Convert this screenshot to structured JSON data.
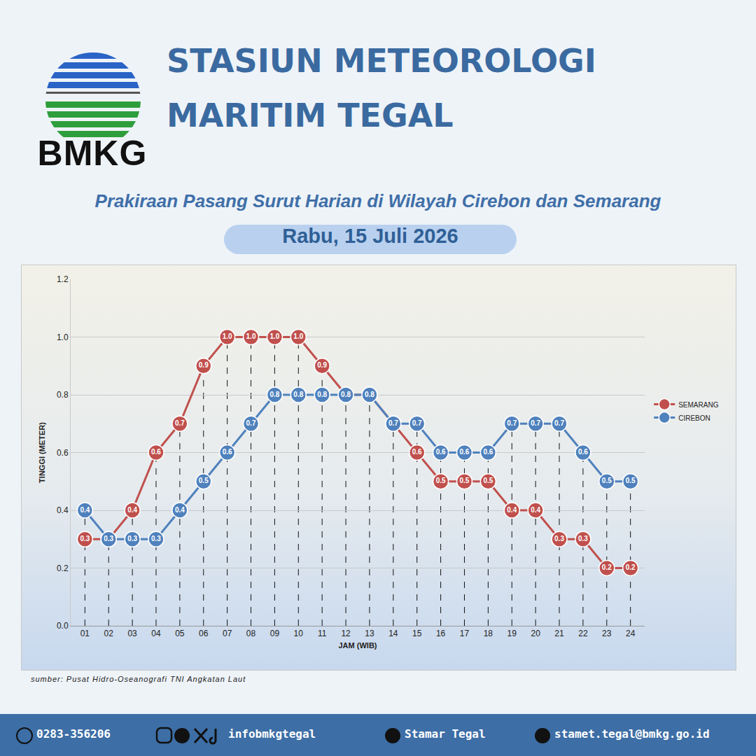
{
  "page": {
    "header": [
      "STASIUN METEOROLOGI",
      "MARITIM TEGAL"
    ],
    "logo_text": "BMKG",
    "source": "sumber: Pusat Hidro-Oseanografi TNI Angkatan Laut",
    "footer": {
      "phone": "0283-356206",
      "social": "infobmkgtegal",
      "youtube": "Stamar Tegal",
      "email": "stamet.tegal@bmkg.go.id"
    }
  },
  "chart_data": {
    "type": "line",
    "title": "Prakiraan Pasang Surut Harian di Wilayah Cirebon dan Semarang",
    "subtitle": "Rabu, 15 Juli 2026",
    "x_label": "JAM (WIB)",
    "y_label": "TINGGI (METER)",
    "categories": [
      "01",
      "02",
      "03",
      "04",
      "05",
      "06",
      "07",
      "08",
      "09",
      "10",
      "11",
      "12",
      "13",
      "14",
      "15",
      "16",
      "17",
      "18",
      "19",
      "20",
      "21",
      "22",
      "23",
      "24"
    ],
    "series": [
      {
        "name": "SEMARANG",
        "color": "#c0504d",
        "values": [
          0.3,
          0.3,
          0.4,
          0.6,
          0.7,
          0.9,
          1.0,
          1.0,
          1.0,
          1.0,
          0.9,
          0.8,
          0.8,
          0.7,
          0.6,
          0.5,
          0.5,
          0.5,
          0.4,
          0.4,
          0.3,
          0.3,
          0.2,
          0.2
        ],
        "value_labels": [
          "0.3",
          "0.3",
          "0.4",
          "0.6",
          "0.7",
          "0.9",
          "1.0",
          "1.0",
          "1.0",
          "1.0",
          "0.9",
          "0.8",
          "0.8",
          "0.7",
          "0.6",
          "0.5",
          "0.5",
          "0.5",
          "0.4",
          "0.4",
          "0.3",
          "0.3",
          "0.2",
          "0.2"
        ]
      },
      {
        "name": "CIREBON",
        "color": "#4f81bd",
        "values": [
          0.4,
          0.3,
          0.3,
          0.3,
          0.4,
          0.5,
          0.6,
          0.7,
          0.8,
          0.8,
          0.8,
          0.8,
          0.8,
          0.7,
          0.7,
          0.6,
          0.6,
          0.6,
          0.7,
          0.7,
          0.7,
          0.6,
          0.5,
          0.5
        ],
        "value_labels": [
          "0.4",
          "0.3",
          "0.3",
          "0.3",
          "0.4",
          "0.5",
          "0.6",
          "0.7",
          "0.8",
          "0.8",
          "0.8",
          "0.8",
          "0.8",
          "0.7",
          "0.7",
          "0.6",
          "0.6",
          "0.6",
          "0.7",
          "0.7",
          "0.7",
          "0.6",
          "0.5",
          "0.5"
        ]
      }
    ],
    "ylim": [
      0,
      1.2
    ],
    "yticks": [
      {
        "value": 0,
        "label": "0.0"
      },
      0.2,
      0.4,
      0.6,
      0.8,
      {
        "value": 1,
        "label": "1.0"
      },
      1.2
    ],
    "grid": true,
    "legend": "right",
    "data_labels": true,
    "marker": "circle",
    "line_style": "solid"
  }
}
